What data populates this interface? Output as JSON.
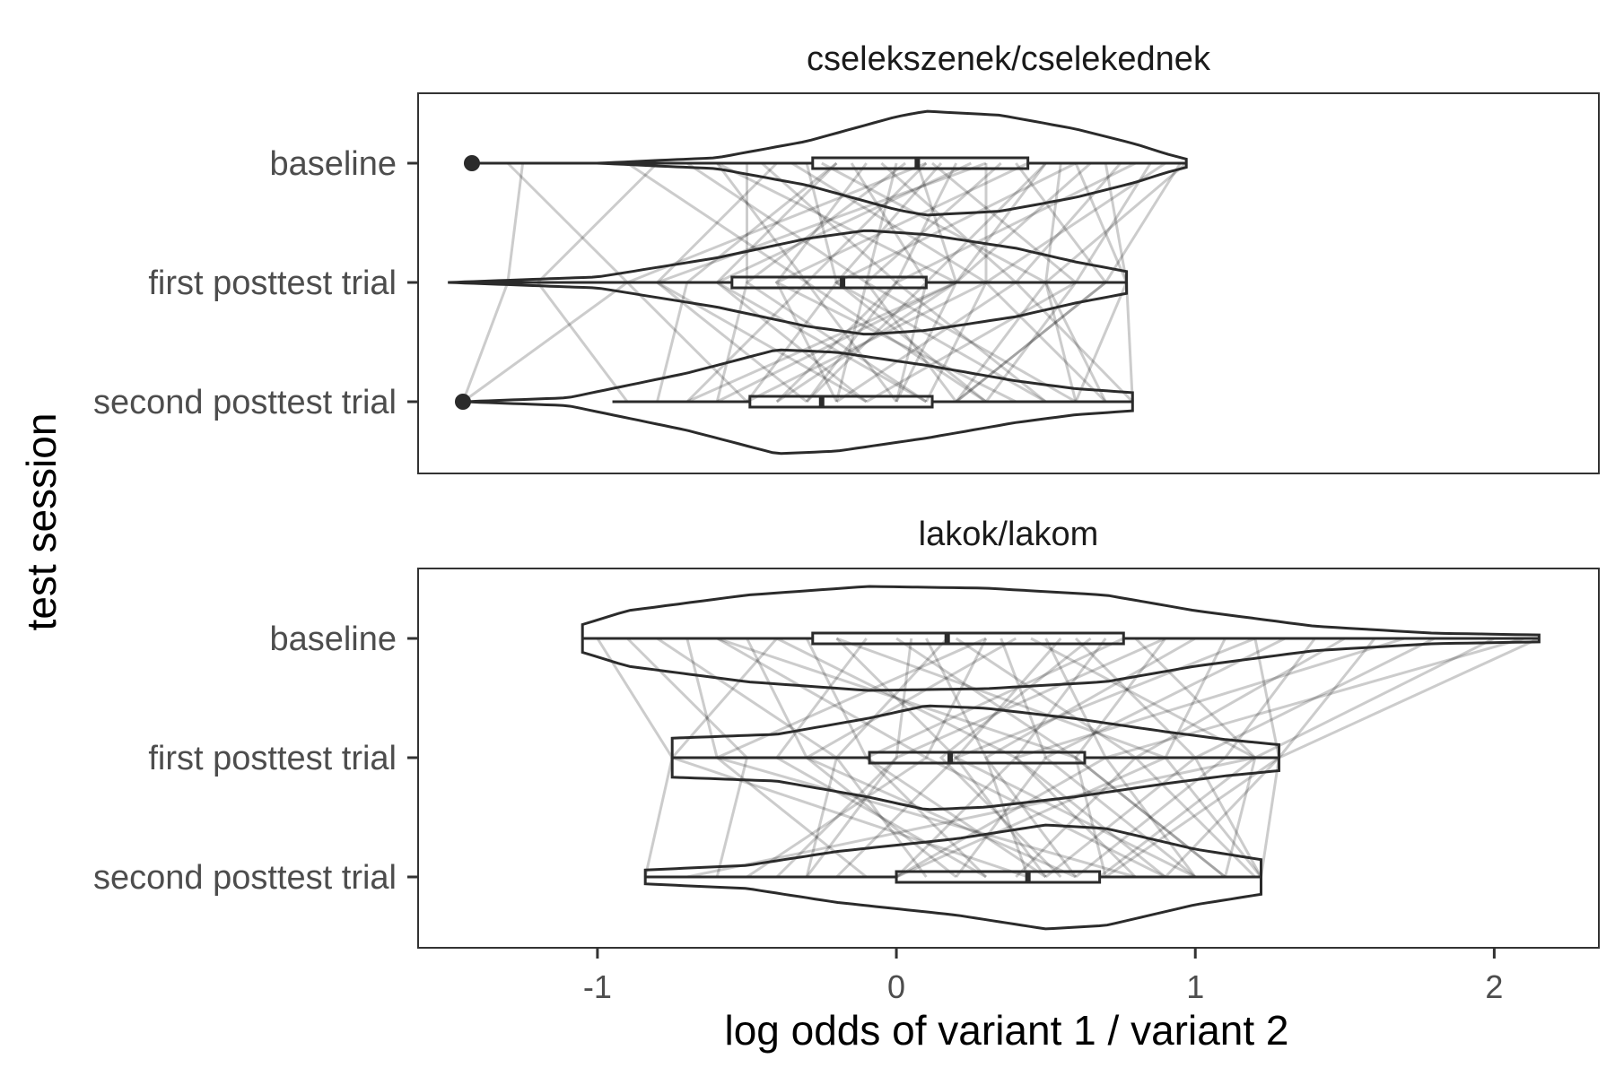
{
  "chart_data": {
    "type": "violin",
    "xlabel": "log odds of variant 1 / variant 2",
    "ylabel": "test session",
    "xlim": [
      -1.6,
      2.35
    ],
    "x_ticks": [
      -1,
      0,
      1,
      2
    ],
    "x_tick_labels": [
      "-1",
      "0",
      "1",
      "2"
    ],
    "categories": [
      "baseline",
      "first posttest trial",
      "second posttest trial"
    ],
    "grid": false,
    "paired_lines": true,
    "facets": [
      {
        "title": "cselekszenek/cselekednek",
        "groups": [
          {
            "category": "baseline",
            "min": -1.3,
            "q1": -0.28,
            "median": 0.07,
            "q3": 0.44,
            "max": 0.97,
            "outliers": [
              -1.42
            ],
            "violin_range": [
              -1.42,
              0.97
            ],
            "density": [
              [
                -1.42,
                0.0
              ],
              [
                -1.0,
                0.0
              ],
              [
                -0.6,
                0.04
              ],
              [
                -0.3,
                0.16
              ],
              [
                0.0,
                0.34
              ],
              [
                0.1,
                0.38
              ],
              [
                0.35,
                0.35
              ],
              [
                0.6,
                0.25
              ],
              [
                0.8,
                0.14
              ],
              [
                0.9,
                0.07
              ],
              [
                0.97,
                0.03
              ]
            ]
          },
          {
            "category": "first posttest trial",
            "min": -1.5,
            "q1": -0.55,
            "median": -0.18,
            "q3": 0.1,
            "max": 0.77,
            "outliers": [],
            "violin_range": [
              -1.5,
              0.77
            ],
            "density": [
              [
                -1.5,
                0.0
              ],
              [
                -1.0,
                0.04
              ],
              [
                -0.6,
                0.18
              ],
              [
                -0.3,
                0.32
              ],
              [
                -0.1,
                0.38
              ],
              [
                0.1,
                0.35
              ],
              [
                0.4,
                0.25
              ],
              [
                0.6,
                0.15
              ],
              [
                0.77,
                0.08
              ]
            ]
          },
          {
            "category": "second posttest trial",
            "min": -0.95,
            "q1": -0.49,
            "median": -0.25,
            "q3": 0.12,
            "max": 0.79,
            "outliers": [
              -1.45
            ],
            "violin_range": [
              -1.45,
              0.79
            ],
            "density": [
              [
                -1.45,
                0.0
              ],
              [
                -1.1,
                0.03
              ],
              [
                -0.7,
                0.22
              ],
              [
                -0.4,
                0.4
              ],
              [
                -0.2,
                0.38
              ],
              [
                0.1,
                0.28
              ],
              [
                0.4,
                0.16
              ],
              [
                0.6,
                0.1
              ],
              [
                0.79,
                0.07
              ]
            ]
          }
        ],
        "pairs": [
          [
            -1.3,
            -0.9,
            -1.45
          ],
          [
            -1.25,
            -1.3,
            -1.45
          ],
          [
            -0.9,
            -0.3,
            -0.7
          ],
          [
            -0.8,
            -1.2,
            -0.9
          ],
          [
            -0.7,
            -0.1,
            -0.2
          ],
          [
            -0.6,
            0.2,
            -0.6
          ],
          [
            -0.5,
            -0.5,
            0.1
          ],
          [
            -0.45,
            0.0,
            -0.4
          ],
          [
            -0.4,
            -0.8,
            -0.3
          ],
          [
            -0.35,
            0.3,
            0.1
          ],
          [
            -0.3,
            -0.2,
            -0.5
          ],
          [
            -0.25,
            0.5,
            0.2
          ],
          [
            -0.2,
            -0.6,
            -0.1
          ],
          [
            -0.15,
            0.1,
            -0.3
          ],
          [
            -0.1,
            -0.4,
            0.4
          ],
          [
            -0.05,
            0.4,
            -0.2
          ],
          [
            0.0,
            -0.1,
            0.2
          ],
          [
            0.03,
            -0.5,
            -0.6
          ],
          [
            0.07,
            0.2,
            0.0
          ],
          [
            0.1,
            -0.3,
            0.3
          ],
          [
            0.12,
            0.6,
            -0.1
          ],
          [
            0.15,
            -0.2,
            0.5
          ],
          [
            0.2,
            0.0,
            -0.3
          ],
          [
            0.25,
            -0.6,
            0.1
          ],
          [
            0.3,
            0.3,
            -0.5
          ],
          [
            0.35,
            -0.1,
            0.6
          ],
          [
            0.4,
            0.7,
            0.2
          ],
          [
            0.44,
            -0.4,
            -0.2
          ],
          [
            0.5,
            0.1,
            0.0
          ],
          [
            0.55,
            0.5,
            0.7
          ],
          [
            0.6,
            -0.2,
            0.3
          ],
          [
            0.65,
            0.2,
            -0.4
          ],
          [
            0.7,
            0.77,
            0.6
          ],
          [
            0.75,
            0.4,
            0.79
          ],
          [
            0.8,
            0.0,
            0.5
          ],
          [
            0.85,
            0.6,
            0.3
          ],
          [
            0.9,
            0.3,
            0.7
          ],
          [
            0.95,
            0.7,
            0.2
          ],
          [
            0.97,
            0.5,
            0.6
          ],
          [
            0.6,
            0.77,
            0.79
          ],
          [
            -0.2,
            -0.7,
            -0.8
          ],
          [
            0.1,
            -0.9,
            -0.5
          ],
          [
            -0.6,
            -0.3,
            0.0
          ],
          [
            0.3,
            -0.8,
            -0.1
          ],
          [
            0.5,
            0.2,
            -0.7
          ]
        ]
      },
      {
        "title": "lakok/lakom",
        "groups": [
          {
            "category": "baseline",
            "min": -1.05,
            "q1": -0.28,
            "median": 0.17,
            "q3": 0.76,
            "max": 2.15,
            "outliers": [],
            "violin_range": [
              -1.05,
              2.15
            ],
            "density": [
              [
                -1.05,
                0.08
              ],
              [
                -0.9,
                0.16
              ],
              [
                -0.5,
                0.25
              ],
              [
                -0.1,
                0.3
              ],
              [
                0.3,
                0.29
              ],
              [
                0.7,
                0.25
              ],
              [
                1.0,
                0.16
              ],
              [
                1.4,
                0.07
              ],
              [
                1.8,
                0.03
              ],
              [
                2.15,
                0.02
              ]
            ]
          },
          {
            "category": "first posttest trial",
            "min": -0.75,
            "q1": -0.09,
            "median": 0.18,
            "q3": 0.63,
            "max": 1.28,
            "outliers": [],
            "violin_range": [
              -0.75,
              1.28
            ],
            "density": [
              [
                -0.75,
                0.15
              ],
              [
                -0.4,
                0.18
              ],
              [
                -0.1,
                0.3
              ],
              [
                0.1,
                0.4
              ],
              [
                0.3,
                0.38
              ],
              [
                0.6,
                0.3
              ],
              [
                0.9,
                0.2
              ],
              [
                1.1,
                0.14
              ],
              [
                1.28,
                0.1
              ]
            ]
          },
          {
            "category": "second posttest trial",
            "min": -0.84,
            "q1": 0.0,
            "median": 0.44,
            "q3": 0.68,
            "max": 1.22,
            "outliers": [],
            "violin_range": [
              -0.84,
              1.22
            ],
            "density": [
              [
                -0.84,
                0.06
              ],
              [
                -0.5,
                0.1
              ],
              [
                -0.2,
                0.22
              ],
              [
                0.2,
                0.33
              ],
              [
                0.5,
                0.45
              ],
              [
                0.7,
                0.42
              ],
              [
                1.0,
                0.24
              ],
              [
                1.22,
                0.15
              ]
            ]
          }
        ],
        "pairs": [
          [
            -1.0,
            -0.75,
            -0.84
          ],
          [
            -0.9,
            -0.5,
            -0.6
          ],
          [
            -0.8,
            -0.2,
            -0.3
          ],
          [
            -0.7,
            -0.6,
            -0.1
          ],
          [
            -0.6,
            0.1,
            -0.5
          ],
          [
            -0.5,
            -0.3,
            0.2
          ],
          [
            -0.4,
            0.4,
            0.0
          ],
          [
            -0.3,
            -0.1,
            0.5
          ],
          [
            -0.2,
            0.2,
            -0.2
          ],
          [
            -0.1,
            -0.4,
            0.3
          ],
          [
            0.0,
            0.6,
            0.7
          ],
          [
            0.05,
            0.0,
            -0.4
          ],
          [
            0.1,
            0.3,
            0.6
          ],
          [
            0.17,
            -0.2,
            0.1
          ],
          [
            0.2,
            0.8,
            0.4
          ],
          [
            0.3,
            0.1,
            0.9
          ],
          [
            0.35,
            0.5,
            0.2
          ],
          [
            0.4,
            -0.3,
            0.6
          ],
          [
            0.5,
            0.7,
            0.0
          ],
          [
            0.55,
            0.2,
            1.0
          ],
          [
            0.6,
            1.0,
            0.5
          ],
          [
            0.7,
            0.4,
            0.8
          ],
          [
            0.76,
            -0.1,
            0.3
          ],
          [
            0.8,
            1.2,
            0.68
          ],
          [
            0.9,
            0.6,
            1.1
          ],
          [
            1.0,
            0.3,
            0.44
          ],
          [
            1.1,
            0.9,
            1.22
          ],
          [
            1.2,
            1.28,
            0.7
          ],
          [
            1.3,
            0.5,
            1.0
          ],
          [
            1.4,
            1.1,
            0.6
          ],
          [
            1.5,
            0.8,
            1.2
          ],
          [
            1.6,
            1.28,
            0.9
          ],
          [
            1.8,
            1.0,
            1.22
          ],
          [
            2.0,
            1.2,
            1.1
          ],
          [
            2.15,
            1.28,
            1.22
          ],
          [
            2.1,
            0.7,
            1.0
          ],
          [
            -0.2,
            0.9,
            0.0
          ],
          [
            0.3,
            -0.6,
            0.8
          ],
          [
            0.9,
            0.0,
            -0.3
          ],
          [
            1.2,
            0.2,
            0.5
          ],
          [
            -0.6,
            0.6,
            1.1
          ],
          [
            0.45,
            1.2,
            -0.7
          ],
          [
            1.7,
            0.4,
            0.9
          ],
          [
            -0.4,
            -0.75,
            0.44
          ],
          [
            0.65,
            0.15,
            0.55
          ]
        ]
      }
    ]
  }
}
